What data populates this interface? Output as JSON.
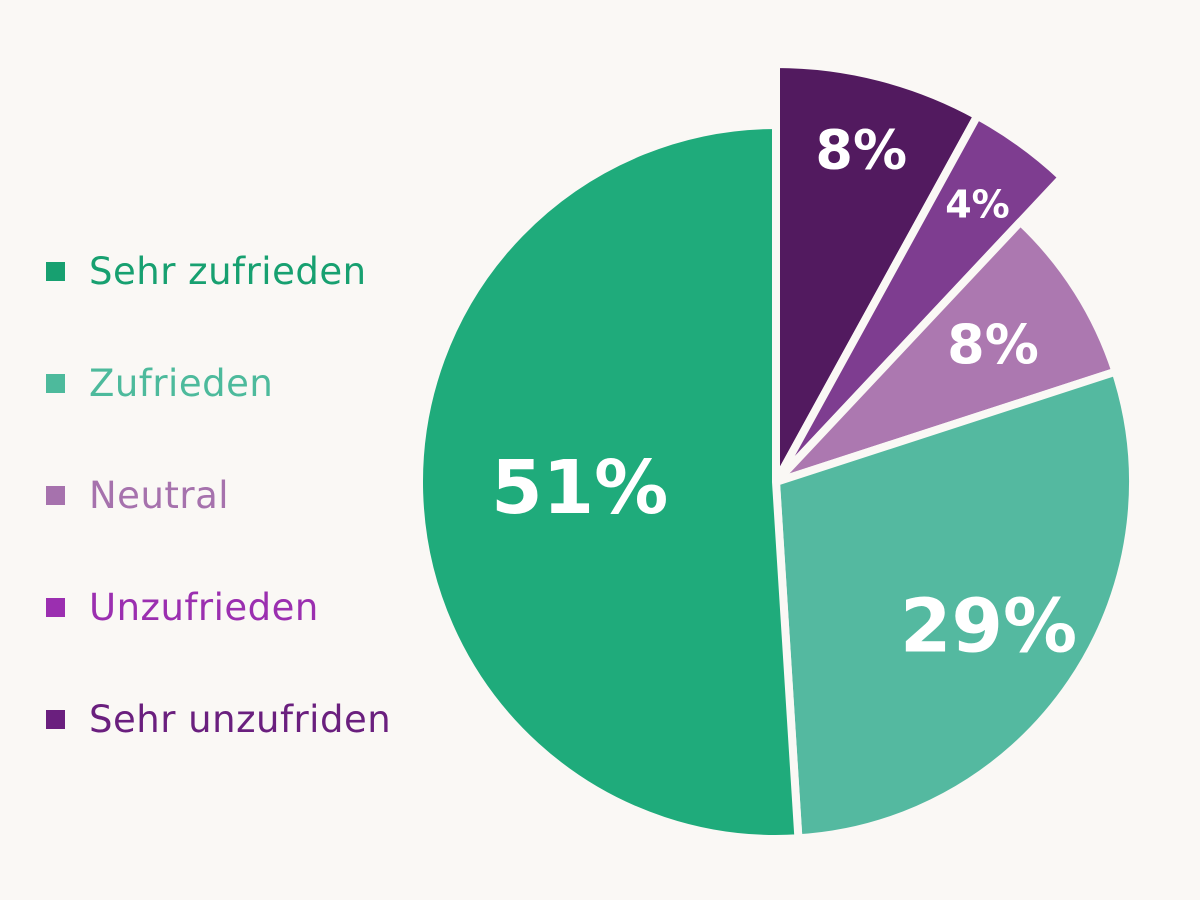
{
  "chart_data": {
    "type": "pie",
    "title": "",
    "slices": [
      {
        "name": "Sehr unzufriden",
        "value": 8,
        "label": "8%",
        "color": "#521a5f",
        "legend_color": "#6a1f7e",
        "exploded": true
      },
      {
        "name": "Unzufrieden",
        "value": 4,
        "label": "4%",
        "color": "#7e3d90",
        "legend_color": "#9b2fb0",
        "exploded": true
      },
      {
        "name": "Neutral",
        "value": 8,
        "label": "8%",
        "color": "#ac78b0",
        "legend_color": "#a672ad",
        "exploded": false
      },
      {
        "name": "Zufrieden",
        "value": 29,
        "label": "29%",
        "color": "#54b9a0",
        "legend_color": "#4dba9c",
        "exploded": false
      },
      {
        "name": "Sehr zufrieden",
        "value": 51,
        "label": "51%",
        "color": "#1fab7b",
        "legend_color": "#17a070",
        "exploded": false
      }
    ],
    "legend_order": [
      "Sehr zufrieden",
      "Zufrieden",
      "Neutral",
      "Unzufrieden",
      "Sehr unzufriden"
    ],
    "legend_placement": "left",
    "start_angle": "12 o'clock",
    "direction": "clockwise"
  }
}
